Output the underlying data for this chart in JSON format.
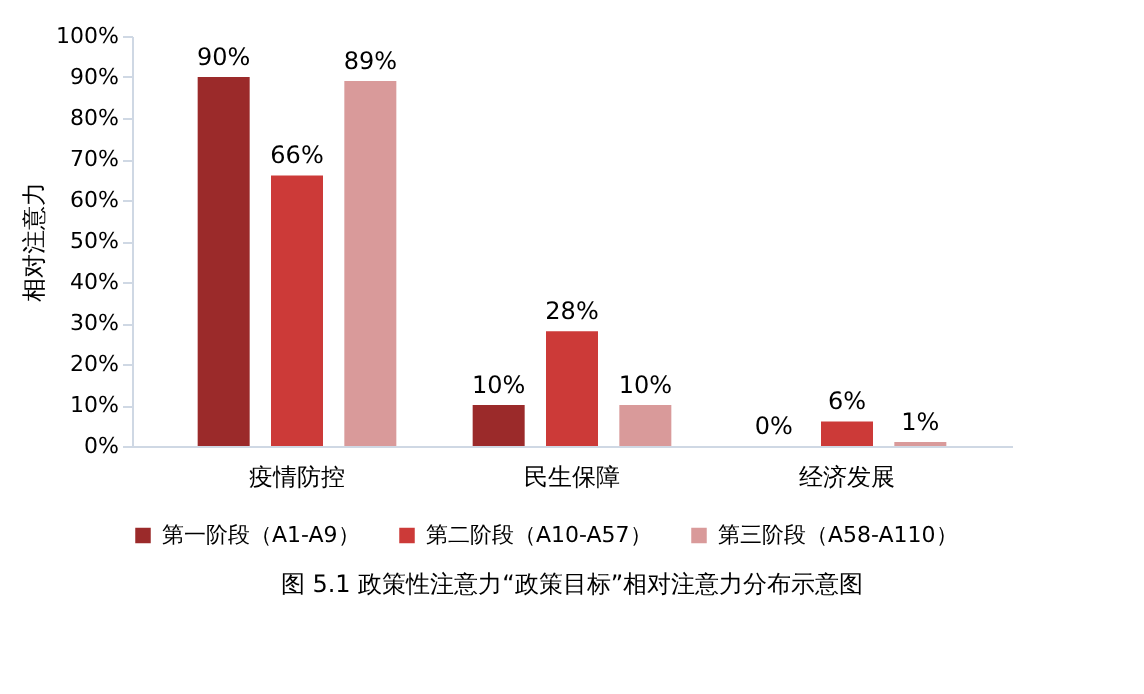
{
  "chart_data": {
    "type": "bar",
    "ylabel": "相对注意力",
    "categories": [
      "疫情防控",
      "民生保障",
      "经济发展"
    ],
    "series": [
      {
        "name": "第一阶段（A1-A9）",
        "color": "#9b2a2a",
        "values": [
          90,
          10,
          0
        ]
      },
      {
        "name": "第二阶段（A10-A57）",
        "color": "#cc3a38",
        "values": [
          66,
          28,
          6
        ]
      },
      {
        "name": "第三阶段（A58-A110）",
        "color": "#d99a9a",
        "values": [
          89,
          10,
          1
        ]
      }
    ],
    "ylim": [
      0,
      100
    ],
    "yticks": [
      {
        "value": 0,
        "label": "0%"
      },
      {
        "value": 10,
        "label": "10%"
      },
      {
        "value": 20,
        "label": "20%"
      },
      {
        "value": 30,
        "label": "30%"
      },
      {
        "value": 40,
        "label": "40%"
      },
      {
        "value": 50,
        "label": "50%"
      },
      {
        "value": 60,
        "label": "60%"
      },
      {
        "value": 70,
        "label": "70%"
      },
      {
        "value": 80,
        "label": "80%"
      },
      {
        "value": 90,
        "label": "90%"
      },
      {
        "value": 100,
        "label": "100%"
      }
    ],
    "value_labels": [
      [
        "90%",
        "10%",
        "0%"
      ],
      [
        "66%",
        "28%",
        "6%"
      ],
      [
        "89%",
        "10%",
        "1%"
      ]
    ],
    "grid": false,
    "legend": "bottom",
    "annotations": [
      "图 5.1   政策性注意力“政策目标”相对注意力分布示意图"
    ]
  }
}
